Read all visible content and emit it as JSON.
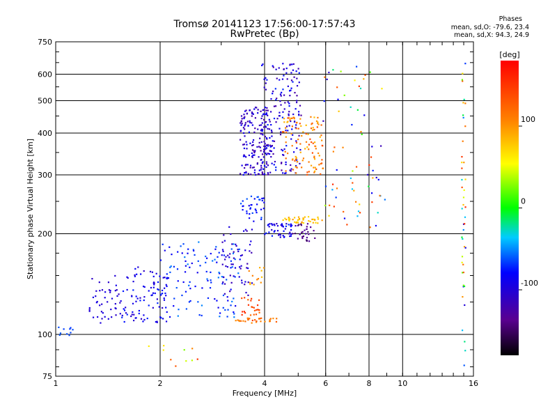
{
  "header": {
    "title_line1": "Tromsø 20141123 17:56:00-17:57:43",
    "title_line2": "RwPretec (Bp)",
    "stats_title": "Phases",
    "stats_line1": "mean, sd,O: -79.6, 23.4",
    "stats_line2": "mean, sd,X:  94.3, 24.9"
  },
  "chart_data": {
    "type": "scatter",
    "title": "Tromsø 20141123 17:56:00-17:57:43",
    "subtitle": "RwPretec (Bp)",
    "xlabel": "Frequency [MHz]",
    "ylabel": "Stationary phase Virtual Height [km]",
    "x_scale": "log",
    "y_scale": "log",
    "xlim": [
      1,
      16
    ],
    "ylim": [
      75,
      750
    ],
    "x_ticks": [
      1,
      2,
      4,
      6,
      8,
      10,
      16
    ],
    "y_ticks": [
      75,
      100,
      200,
      300,
      400,
      500,
      600,
      750
    ],
    "grid": true,
    "colorbar": {
      "label": "[deg]",
      "range": [
        -180,
        180
      ],
      "ticks": [
        100,
        0,
        -100
      ],
      "colormap": "rainbow"
    },
    "clusters": [
      {
        "freq": [
          1.0,
          1.12
        ],
        "height": [
          98,
          106
        ],
        "phase": [
          -70,
          -60
        ],
        "count": 10
      },
      {
        "freq": [
          1.25,
          1.55
        ],
        "height": [
          108,
          150
        ],
        "phase": [
          -110,
          -90
        ],
        "count": 45
      },
      {
        "freq": [
          1.55,
          2.1
        ],
        "height": [
          108,
          160
        ],
        "phase": [
          -110,
          -70
        ],
        "count": 90
      },
      {
        "freq": [
          2.0,
          3.4
        ],
        "height": [
          112,
          190
        ],
        "phase": [
          -90,
          -50
        ],
        "count": 120
      },
      {
        "freq": [
          3.0,
          3.7
        ],
        "height": [
          130,
          210
        ],
        "phase": [
          -120,
          -90
        ],
        "count": 60
      },
      {
        "freq": [
          3.4,
          3.9
        ],
        "height": [
          110,
          130
        ],
        "phase": [
          120,
          160
        ],
        "count": 25
      },
      {
        "freq": [
          3.3,
          4.4
        ],
        "height": [
          108,
          112
        ],
        "phase": [
          100,
          130
        ],
        "count": 30
      },
      {
        "freq": [
          3.6,
          4.0
        ],
        "height": [
          140,
          165
        ],
        "phase": [
          80,
          110
        ],
        "count": 12
      },
      {
        "freq": [
          3.4,
          4.2
        ],
        "height": [
          300,
          480
        ],
        "phase": [
          -130,
          -80
        ],
        "count": 170
      },
      {
        "freq": [
          3.9,
          5.1
        ],
        "height": [
          300,
          650
        ],
        "phase": [
          -130,
          -70
        ],
        "count": 170
      },
      {
        "freq": [
          4.5,
          5.9
        ],
        "height": [
          300,
          450
        ],
        "phase": [
          80,
          140
        ],
        "count": 110
      },
      {
        "freq": [
          3.4,
          4.0
        ],
        "height": [
          215,
          260
        ],
        "phase": [
          -90,
          -60
        ],
        "count": 35
      },
      {
        "freq": [
          4.0,
          4.8
        ],
        "height": [
          195,
          215
        ],
        "phase": [
          -110,
          -70
        ],
        "count": 45
      },
      {
        "freq": [
          4.8,
          5.6
        ],
        "height": [
          190,
          215
        ],
        "phase": [
          -150,
          -120
        ],
        "count": 30
      },
      {
        "freq": [
          4.5,
          5.9
        ],
        "height": [
          215,
          225
        ],
        "phase": [
          60,
          100
        ],
        "count": 40
      },
      {
        "freq": [
          5.9,
          8.9
        ],
        "height": [
          200,
          650
        ],
        "phase": [
          -120,
          160
        ],
        "count": 70
      },
      {
        "freq": [
          14.8,
          15.2
        ],
        "height": [
          80,
          650
        ],
        "phase": [
          -120,
          160
        ],
        "count": 45
      },
      {
        "freq": [
          1.8,
          2.6
        ],
        "height": [
          80,
          95
        ],
        "phase": [
          20,
          160
        ],
        "count": 10
      }
    ]
  }
}
